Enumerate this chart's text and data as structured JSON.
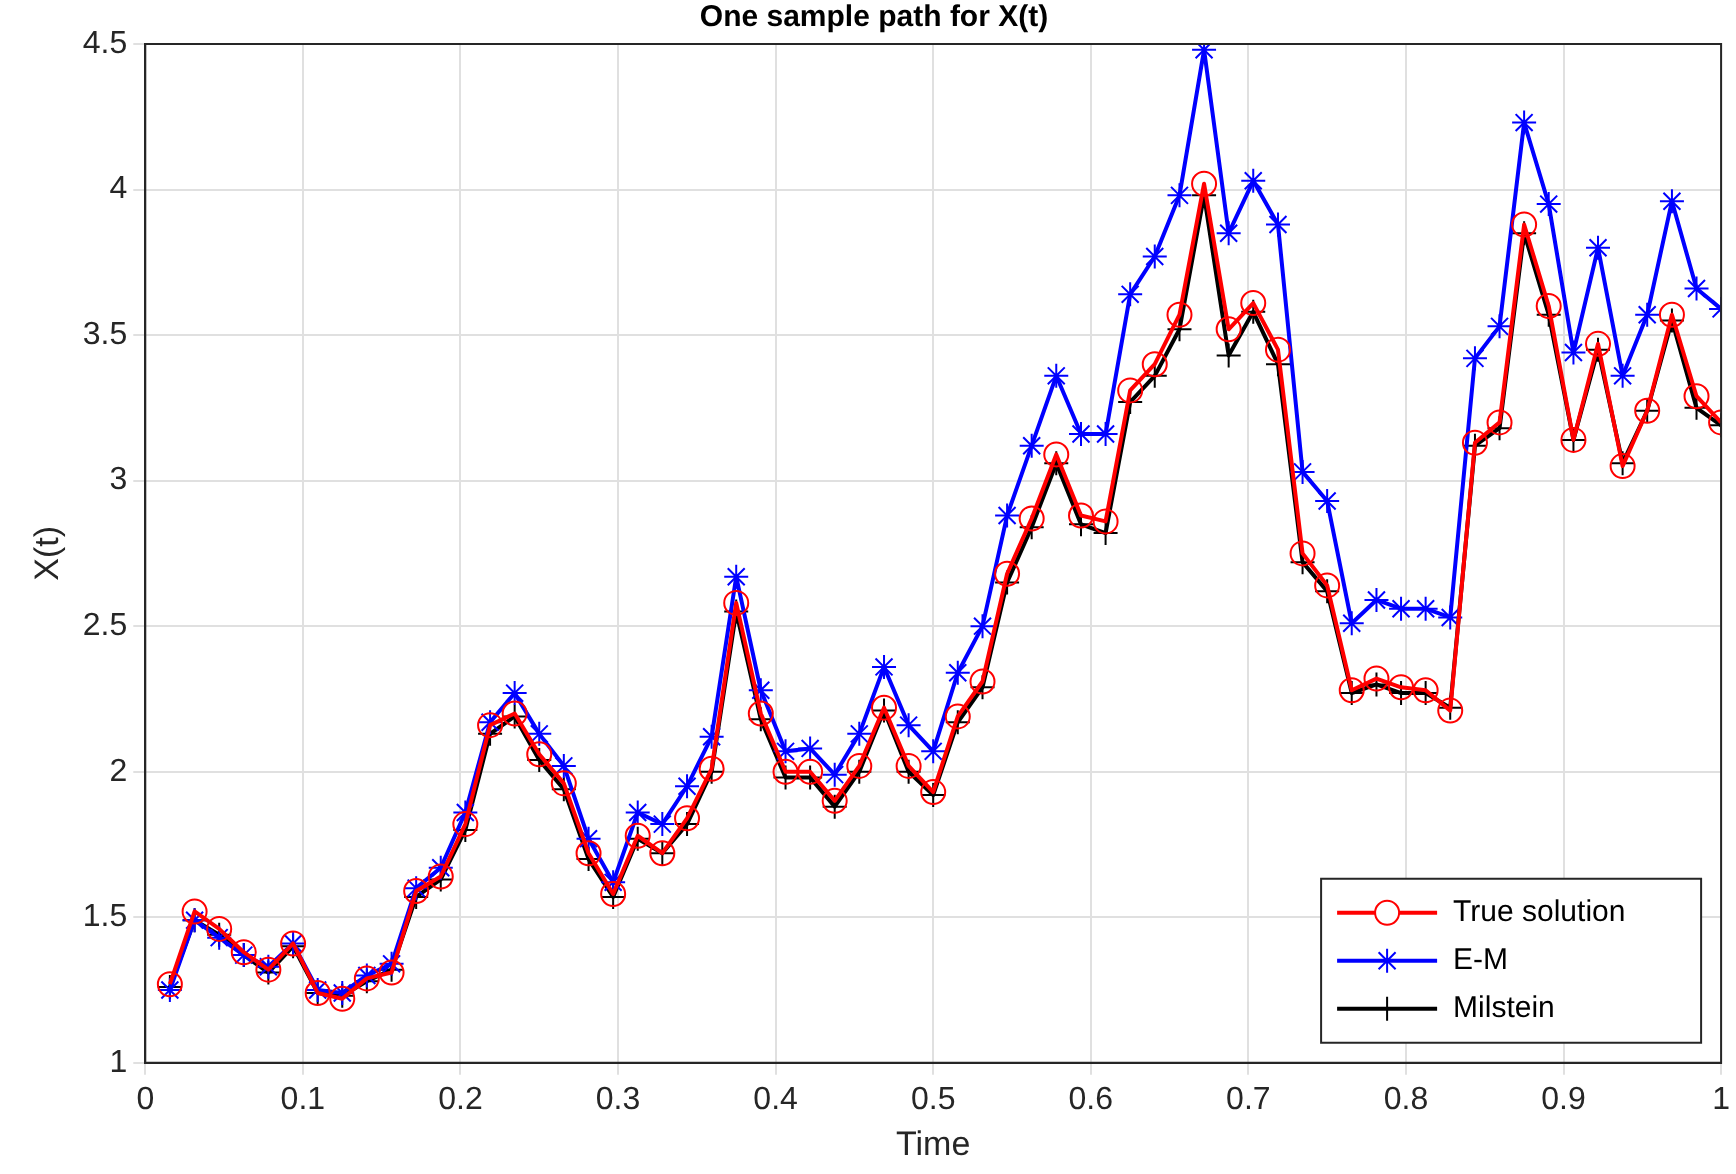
{
  "chart_data": {
    "type": "line",
    "title": "One sample path for X(t)",
    "xlabel": "Time",
    "ylabel": "X(t)",
    "x": [
      0.0156,
      0.0313,
      0.0469,
      0.0625,
      0.0781,
      0.0938,
      0.1094,
      0.125,
      0.1406,
      0.1563,
      0.1719,
      0.1875,
      0.2031,
      0.2188,
      0.2344,
      0.25,
      0.2656,
      0.2813,
      0.2969,
      0.3125,
      0.3281,
      0.3438,
      0.3594,
      0.375,
      0.3906,
      0.4063,
      0.4219,
      0.4375,
      0.4531,
      0.4688,
      0.4844,
      0.5,
      0.5156,
      0.5313,
      0.5469,
      0.5625,
      0.5781,
      0.5938,
      0.6094,
      0.625,
      0.6406,
      0.6563,
      0.6719,
      0.6875,
      0.7031,
      0.7188,
      0.7344,
      0.75,
      0.7656,
      0.7813,
      0.7969,
      0.8125,
      0.8281,
      0.8438,
      0.8594,
      0.875,
      0.8906,
      0.9063,
      0.9219,
      0.9375,
      0.9531,
      0.9688,
      0.9844,
      1
    ],
    "series": [
      {
        "name": "True solution",
        "color": "#ff0000",
        "marker": "circle",
        "values": [
          1.27,
          1.52,
          1.46,
          1.38,
          1.32,
          1.41,
          1.24,
          1.22,
          1.29,
          1.31,
          1.59,
          1.64,
          1.82,
          2.16,
          2.2,
          2.06,
          1.96,
          1.72,
          1.58,
          1.78,
          1.72,
          1.84,
          2.01,
          2.58,
          2.2,
          2.0,
          2.0,
          1.9,
          2.02,
          2.22,
          2.02,
          1.93,
          2.19,
          2.31,
          2.68,
          2.87,
          3.09,
          2.88,
          2.86,
          3.31,
          3.4,
          3.57,
          4.02,
          3.52,
          3.61,
          3.45,
          2.75,
          2.64,
          2.28,
          2.32,
          2.29,
          2.28,
          2.21,
          3.13,
          3.2,
          3.88,
          3.6,
          3.14,
          3.47,
          3.05,
          3.24,
          3.57,
          3.29,
          3.2
        ]
      },
      {
        "name": "E-M",
        "color": "#0000ff",
        "marker": "cross",
        "values": [
          1.25,
          1.49,
          1.43,
          1.37,
          1.33,
          1.41,
          1.25,
          1.24,
          1.3,
          1.34,
          1.6,
          1.67,
          1.86,
          2.17,
          2.27,
          2.13,
          2.02,
          1.77,
          1.62,
          1.86,
          1.82,
          1.95,
          2.12,
          2.67,
          2.28,
          2.07,
          2.08,
          1.99,
          2.13,
          2.36,
          2.16,
          2.07,
          2.34,
          2.5,
          2.88,
          3.12,
          3.36,
          3.16,
          3.16,
          3.64,
          3.77,
          3.98,
          4.48,
          3.85,
          4.03,
          3.88,
          3.03,
          2.93,
          2.51,
          2.59,
          2.56,
          2.56,
          2.53,
          3.42,
          3.53,
          4.23,
          3.95,
          3.44,
          3.8,
          3.36,
          3.57,
          3.96,
          3.66,
          3.59
        ]
      },
      {
        "name": "Milstein",
        "color": "#000000",
        "marker": "cross",
        "values": [
          1.26,
          1.49,
          1.44,
          1.37,
          1.31,
          1.4,
          1.24,
          1.23,
          1.28,
          1.32,
          1.57,
          1.63,
          1.8,
          2.13,
          2.19,
          2.04,
          1.94,
          1.7,
          1.57,
          1.77,
          1.72,
          1.82,
          2.0,
          2.55,
          2.18,
          1.98,
          1.98,
          1.88,
          2.0,
          2.21,
          2.0,
          1.92,
          2.17,
          2.29,
          2.65,
          2.84,
          3.06,
          2.85,
          2.82,
          3.27,
          3.36,
          3.52,
          3.98,
          3.43,
          3.58,
          3.4,
          2.72,
          2.62,
          2.27,
          2.3,
          2.27,
          2.27,
          2.22,
          3.12,
          3.18,
          3.85,
          3.57,
          3.14,
          3.45,
          3.06,
          3.24,
          3.55,
          3.25,
          3.19
        ]
      }
    ],
    "xlim": [
      0,
      1
    ],
    "xticks": [
      0,
      0.1,
      0.2,
      0.3,
      0.4,
      0.5,
      0.6,
      0.7,
      0.8,
      0.9,
      1
    ],
    "ylim": [
      1,
      4.5
    ],
    "yticks": [
      1,
      1.5,
      2,
      2.5,
      3,
      3.5,
      4,
      4.5
    ],
    "grid": true,
    "legend": "bottom right",
    "line_style": "solid"
  }
}
